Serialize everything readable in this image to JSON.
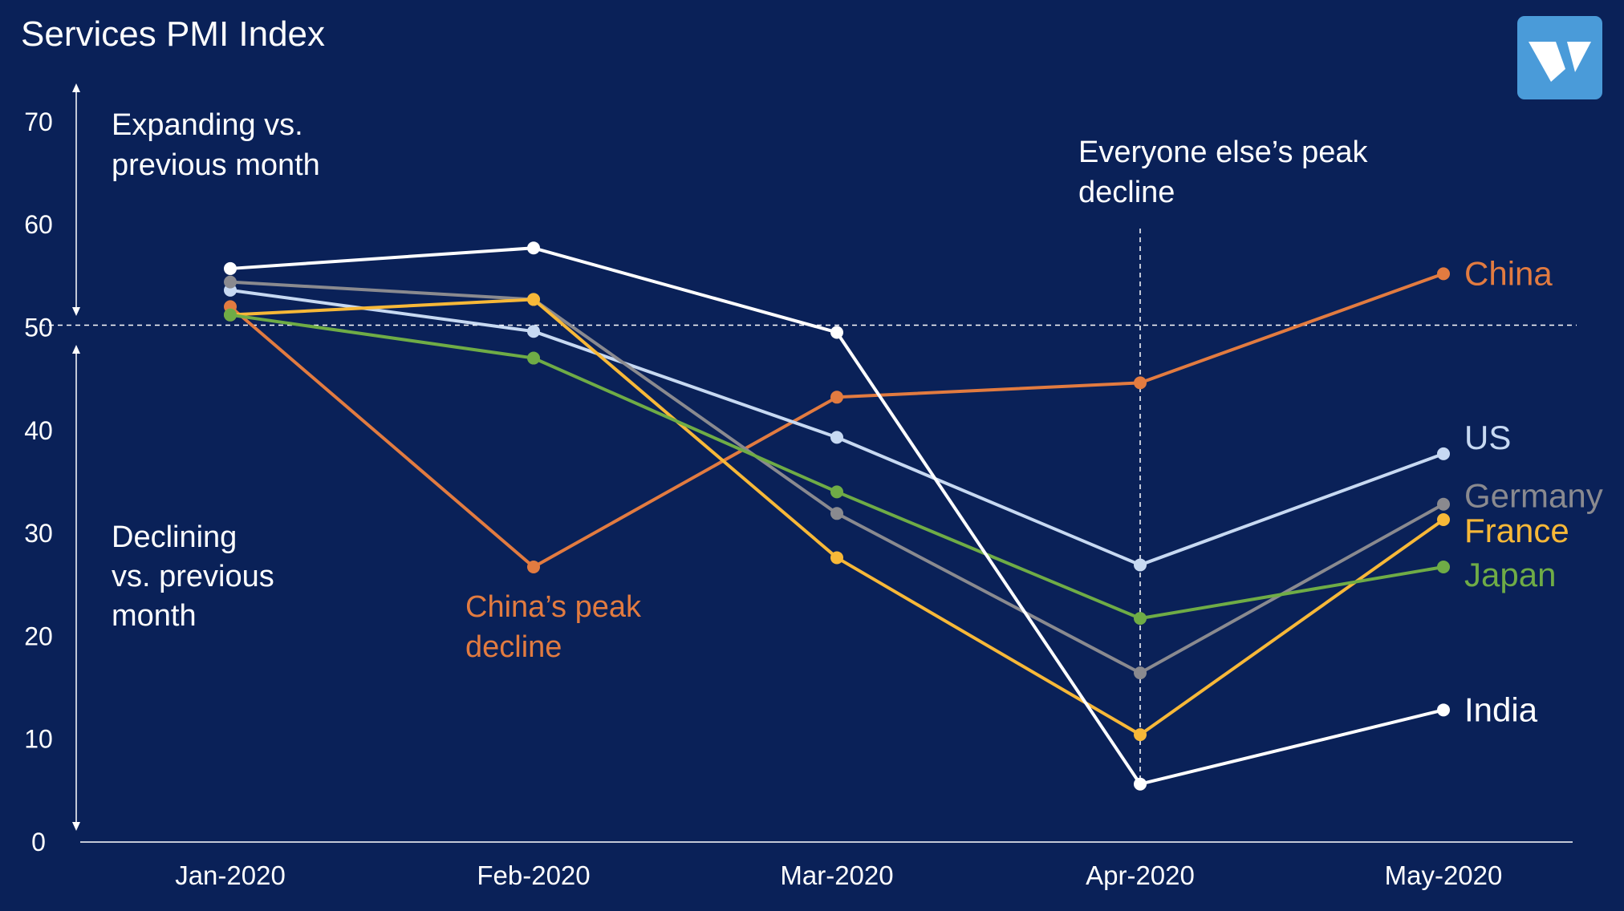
{
  "page": {
    "title": "Services PMI Index",
    "logo_name": "brand-logo-icon",
    "background": "#0a2158"
  },
  "chart_data": {
    "type": "line",
    "title": "Services PMI Index",
    "xlabel": "",
    "ylabel": "",
    "categories": [
      "Jan-2020",
      "Feb-2020",
      "Mar-2020",
      "Apr-2020",
      "May-2020"
    ],
    "ylim": [
      0,
      70
    ],
    "yticks": [
      0,
      10,
      20,
      30,
      40,
      50,
      60,
      70
    ],
    "grid": false,
    "reference_line": {
      "y": 50,
      "style": "dashed"
    },
    "vertical_marker": {
      "category": "Apr-2020",
      "style": "dashed"
    },
    "series": [
      {
        "name": "China",
        "color": "#e27b40",
        "values": [
          51.8,
          26.5,
          43.0,
          44.4,
          55.0
        ]
      },
      {
        "name": "US",
        "color": "#c7d9f2",
        "values": [
          53.4,
          49.4,
          39.1,
          26.7,
          37.5
        ]
      },
      {
        "name": "Germany",
        "color": "#8a8a8f",
        "values": [
          54.2,
          52.5,
          31.7,
          16.2,
          32.6
        ]
      },
      {
        "name": "France",
        "color": "#f7b838",
        "values": [
          51.0,
          52.5,
          27.4,
          10.2,
          31.1
        ]
      },
      {
        "name": "Japan",
        "color": "#6fac46",
        "values": [
          51.0,
          46.8,
          33.8,
          21.5,
          26.5
        ]
      },
      {
        "name": "India",
        "color": "#ffffff",
        "values": [
          55.5,
          57.5,
          49.3,
          5.4,
          12.6
        ]
      }
    ],
    "annotations": [
      {
        "text": "Expanding vs.\nprevious month",
        "color": "#ffffff"
      },
      {
        "text": "Declining\nvs. previous\nmonth",
        "color": "#ffffff"
      },
      {
        "text": "Everyone else’s peak\ndecline",
        "color": "#ffffff"
      },
      {
        "text": "China’s peak\ndecline",
        "color": "#e27b40"
      }
    ]
  }
}
